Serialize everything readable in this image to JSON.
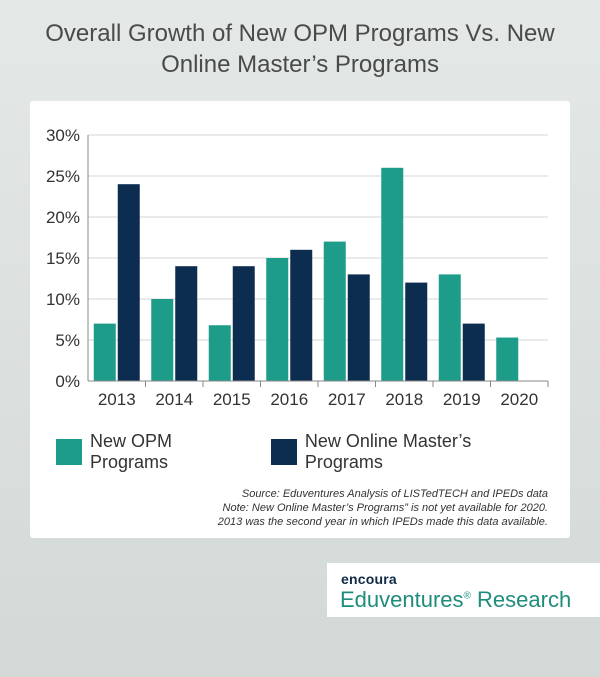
{
  "title_line1": "Overall Growth of New OPM Programs Vs. New",
  "title_line2": "Online Master’s Programs",
  "chart_data": {
    "type": "bar",
    "categories": [
      "2013",
      "2014",
      "2015",
      "2016",
      "2017",
      "2018",
      "2019",
      "2020"
    ],
    "series": [
      {
        "name": "New OPM Programs",
        "color": "#1e9c8a",
        "values": [
          7,
          10,
          6.8,
          15,
          17,
          26,
          13,
          5.3
        ]
      },
      {
        "name": "New Online Master’s Programs",
        "color": "#0c2d4f",
        "values": [
          24,
          14,
          14,
          16,
          13,
          12,
          7,
          null
        ]
      }
    ],
    "ylim": [
      0,
      30
    ],
    "yticks": [
      0,
      5,
      10,
      15,
      20,
      25,
      30
    ],
    "ytick_labels": [
      "0%",
      "5%",
      "10%",
      "15%",
      "20%",
      "25%",
      "30%"
    ],
    "grid": true,
    "legend_position": "bottom-left"
  },
  "notes": {
    "source": "Source: Eduventures Analysis of LISTedTECH and IPEDs data",
    "note1": "Note: New Online Master’s Programs” is not yet available for 2020.",
    "note2": "2013 was the second year in which IPEDs made this data available."
  },
  "brand": {
    "top": "encoura",
    "bottom": "Eduventures",
    "mark": "®",
    "suffix": " Research"
  }
}
